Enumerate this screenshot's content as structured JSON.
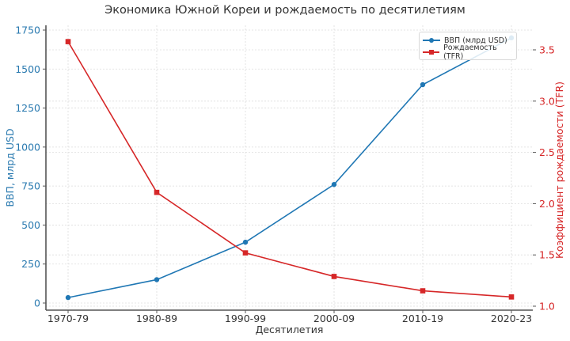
{
  "chart_data": {
    "type": "line",
    "title": "Экономика Южной Кореи и рождаемость по десятилетиям",
    "xlabel": "Десятилетия",
    "categories": [
      "1970-79",
      "1980-89",
      "1990-99",
      "2000-09",
      "2010-19",
      "2020-23"
    ],
    "series": [
      {
        "name": "ВВП (млрд USD)",
        "axis": "left",
        "color": "#1f77b4",
        "marker": "circle",
        "values": [
          35,
          150,
          390,
          760,
          1400,
          1700
        ]
      },
      {
        "name": "Рождаемость (TFR)",
        "axis": "right",
        "color": "#d62728",
        "marker": "square",
        "values": [
          3.58,
          2.11,
          1.52,
          1.29,
          1.15,
          1.09
        ]
      }
    ],
    "ylabel_left": "ВВП, млрд USD",
    "ylabel_right": "Коэффициент рождаемости (TFR)",
    "ylim_left": [
      -50,
      1780
    ],
    "ylim_right": [
      0.97,
      3.72
    ],
    "yticks_left": [
      0,
      250,
      500,
      750,
      1000,
      1250,
      1500,
      1750
    ],
    "yticks_right": [
      1.0,
      1.5,
      2.0,
      2.5,
      3.0,
      3.5
    ],
    "ytick_labels_left": [
      "0",
      "250",
      "500",
      "750",
      "1000",
      "1250",
      "1500",
      "1750"
    ],
    "ytick_labels_right": [
      "1.0",
      "1.5",
      "2.0",
      "2.5",
      "3.0",
      "3.5"
    ],
    "grid": true,
    "legend_position": "upper right"
  },
  "colors": {
    "left_axis": "#2a7ab0",
    "right_axis": "#d62728",
    "grid": "#dddddd",
    "spine": "#555555",
    "text": "#333333"
  },
  "legend": {
    "items": [
      {
        "label": "ВВП (млрд USD)",
        "color": "#1f77b4",
        "marker": "circle"
      },
      {
        "label": "Рождаемость (TFR)",
        "color": "#d62728",
        "marker": "square"
      }
    ]
  }
}
